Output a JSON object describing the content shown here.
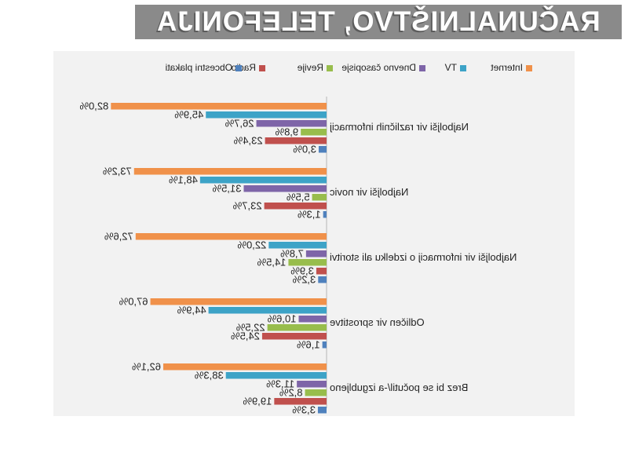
{
  "banner": {
    "title": "RAČUNALNIŠTVO, TELEFONIJA"
  },
  "chart_data": {
    "type": "bar",
    "orientation": "horizontal",
    "mirrored": true,
    "legend_position": "top",
    "grid": false,
    "categories": [
      "Najboljši vir različnih informacij",
      "Najboljši vir novic",
      "Najboljši vir informacij o izdelku ali storitvi",
      "Odličen vir sprostitve",
      "Brez bi se počutil/-a izgubljeno"
    ],
    "series": [
      {
        "name": "Internet",
        "color": "#F0914A",
        "values": [
          82.0,
          73.2,
          72.6,
          67.0,
          62.1
        ],
        "labels": [
          "82,0%",
          "73,2%",
          "72,6%",
          "67,0%",
          "62,1%"
        ]
      },
      {
        "name": "TV",
        "color": "#3DA3C7",
        "values": [
          45.9,
          48.1,
          22.0,
          44.9,
          38.3
        ],
        "labels": [
          "45,9%",
          "48,1%",
          "22,0%",
          "44,9%",
          "38,3%"
        ]
      },
      {
        "name": "Dnevno časopisje",
        "color": "#7E65A8",
        "values": [
          26.7,
          31.5,
          7.8,
          10.6,
          11.3
        ],
        "labels": [
          "26,7%",
          "31,5%",
          "7,8%",
          "10,6%",
          "11,3%"
        ]
      },
      {
        "name": "Revije",
        "color": "#98BD4C",
        "values": [
          9.8,
          5.5,
          14.5,
          22.5,
          8.2
        ],
        "labels": [
          "9,8%",
          "5,5%",
          "14,5%",
          "22,5%",
          "8,2%"
        ]
      },
      {
        "name": "Radio",
        "color": "#C0504D",
        "values": [
          23.4,
          23.7,
          3.9,
          24.5,
          19.9
        ],
        "labels": [
          "23,4%",
          "23,7%",
          "3,9%",
          "24,5%",
          "19,9%"
        ]
      },
      {
        "name": "Obcestni plakati",
        "color": "#4F81BD",
        "values": [
          3.0,
          1.3,
          3.2,
          1.6,
          3.3
        ],
        "labels": [
          "3,0%",
          "1,3%",
          "3,2%",
          "1,6%",
          "3,3%"
        ]
      }
    ]
  }
}
